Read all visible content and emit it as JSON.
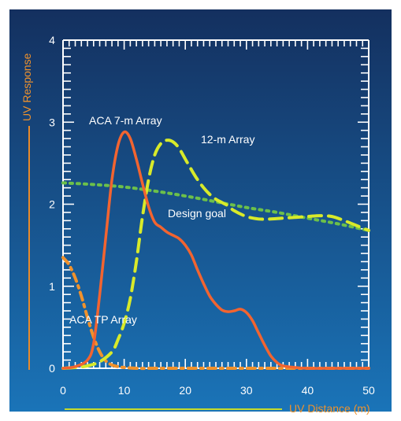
{
  "chart_data": {
    "type": "line",
    "title": "",
    "xlabel": "UV Distance (m)",
    "ylabel": "UV Response",
    "xlim": [
      0,
      50
    ],
    "ylim": [
      0,
      4
    ],
    "x_ticks": [
      "0",
      "10",
      "20",
      "30",
      "40",
      "50"
    ],
    "y_ticks": [
      "0",
      "1",
      "2",
      "3",
      "4"
    ],
    "grid": false,
    "legend": "none",
    "colors": {
      "background_top": "#14305f",
      "background_bottom": "#1a74b8",
      "frame": "#ffffff",
      "axis_label": "#f0922c",
      "axis_label_line_x": "#c4da2c",
      "axis_label_line_y": "#e88a2a"
    },
    "series": [
      {
        "name": "ACA 7-m Array",
        "color": "#f26430",
        "style": "solid",
        "x": [
          0,
          2,
          4,
          5,
          6,
          7,
          8,
          9,
          10,
          11,
          12,
          13,
          14,
          15,
          16,
          17,
          18,
          19,
          20,
          21,
          22,
          23,
          24,
          25,
          26,
          27,
          28,
          29,
          30,
          31,
          32,
          33,
          34,
          35,
          36,
          38,
          40,
          45,
          50
        ],
        "y": [
          0.0,
          0.02,
          0.1,
          0.3,
          0.9,
          1.6,
          2.3,
          2.72,
          2.88,
          2.8,
          2.55,
          2.25,
          1.97,
          1.78,
          1.72,
          1.66,
          1.62,
          1.58,
          1.5,
          1.38,
          1.2,
          1.03,
          0.88,
          0.78,
          0.71,
          0.69,
          0.7,
          0.72,
          0.68,
          0.58,
          0.43,
          0.28,
          0.15,
          0.07,
          0.03,
          0.01,
          0.0,
          0.0,
          0.0
        ]
      },
      {
        "name": "12-m Array",
        "color": "#d8ea2a",
        "style": "dashed",
        "x": [
          0,
          2,
          4,
          6,
          8,
          9,
          10,
          11,
          12,
          13,
          14,
          15,
          16,
          17,
          18,
          19,
          20,
          21,
          22,
          23,
          24,
          25,
          26,
          27,
          28,
          30,
          32,
          34,
          36,
          38,
          40,
          42,
          44,
          46,
          48,
          50
        ],
        "y": [
          0.0,
          0.01,
          0.03,
          0.08,
          0.2,
          0.35,
          0.55,
          0.85,
          1.3,
          1.85,
          2.3,
          2.6,
          2.74,
          2.78,
          2.76,
          2.68,
          2.55,
          2.42,
          2.3,
          2.2,
          2.12,
          2.06,
          2.02,
          1.98,
          1.92,
          1.85,
          1.82,
          1.82,
          1.83,
          1.84,
          1.85,
          1.86,
          1.85,
          1.8,
          1.74,
          1.68
        ]
      },
      {
        "name": "Design goal",
        "color": "#6cc04a",
        "style": "dotted",
        "x": [
          0,
          5,
          10,
          15,
          20,
          25,
          30,
          35,
          40,
          45,
          50
        ],
        "y": [
          2.26,
          2.24,
          2.21,
          2.16,
          2.1,
          2.03,
          1.96,
          1.9,
          1.83,
          1.76,
          1.68
        ]
      },
      {
        "name": "ACA TP Array",
        "color": "#f0922c",
        "style": "dashdot",
        "x": [
          0,
          1,
          2,
          3,
          4,
          5,
          6,
          7,
          8,
          9,
          10,
          12,
          15,
          20,
          30,
          40,
          50
        ],
        "y": [
          1.35,
          1.26,
          1.1,
          0.88,
          0.62,
          0.38,
          0.2,
          0.09,
          0.04,
          0.02,
          0.01,
          0.0,
          0.0,
          0.0,
          0.0,
          0.0,
          0.0
        ]
      }
    ]
  }
}
